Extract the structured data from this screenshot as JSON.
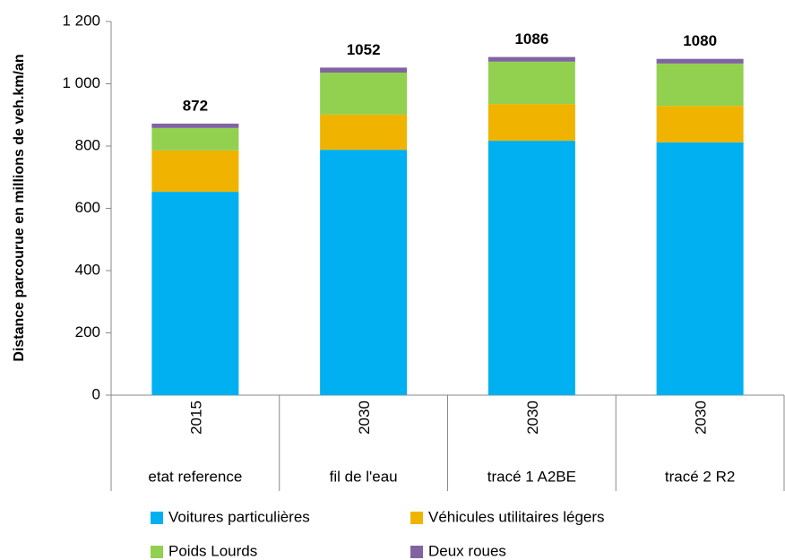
{
  "chart_data": {
    "type": "stacked_bar",
    "y_label": "Distance parcourue en millions de veh.km/an",
    "categories": [
      "2015",
      "2030",
      "2030",
      "2030"
    ],
    "groups": [
      "etat reference",
      "fil de l'eau",
      "tracé 1 A2BE",
      "tracé 2 R2"
    ],
    "series": [
      {
        "name": "Voitures particulières",
        "color": "#00b0f0",
        "values": [
          653,
          788,
          817,
          812
        ]
      },
      {
        "name": "Véhicules utilitaires légers",
        "color": "#f0b400",
        "values": [
          133,
          113,
          118,
          117
        ]
      },
      {
        "name": "Poids Lourds",
        "color": "#92d050",
        "values": [
          72,
          135,
          136,
          136
        ]
      },
      {
        "name": "Deux roues",
        "color": "#8064a2",
        "values": [
          14,
          16,
          15,
          15
        ]
      }
    ],
    "totals": [
      872,
      1052,
      1086,
      1080
    ],
    "ylim": [
      0,
      1200
    ],
    "yticks": [
      0,
      200,
      400,
      600,
      800,
      {
        "value": 1000,
        "label": "1 000"
      },
      {
        "value": 1200,
        "label": "1 200"
      }
    ],
    "grid": false
  }
}
